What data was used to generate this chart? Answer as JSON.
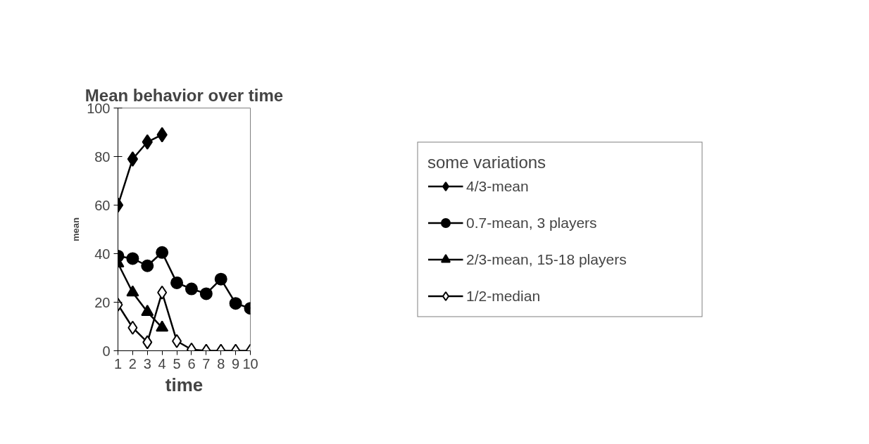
{
  "chart_data": {
    "type": "line",
    "title": "Mean behavior over time",
    "xlabel": "time",
    "ylabel": "mean",
    "legend_title": "some variations",
    "x": [
      1,
      2,
      3,
      4,
      5,
      6,
      7,
      8,
      9,
      10
    ],
    "xlim": [
      1,
      10
    ],
    "xticks": [
      1,
      2,
      3,
      4,
      5,
      6,
      7,
      8,
      9,
      10
    ],
    "ylim": [
      0,
      100
    ],
    "yticks": [
      0,
      20,
      40,
      60,
      80,
      100
    ],
    "grid": false,
    "legend": "right",
    "line_style": "solid",
    "series": [
      {
        "name": "4/3-mean",
        "color": "#000000",
        "marker": "diamond",
        "values": [
          60,
          79,
          86,
          89,
          null,
          null,
          null,
          null,
          null,
          null
        ]
      },
      {
        "name": "0.7-mean, 3 players",
        "color": "#000000",
        "marker": "circle",
        "values": [
          39,
          38,
          35,
          40.5,
          28,
          25.5,
          23.5,
          29.5,
          19.5,
          17.5
        ]
      },
      {
        "name": "2/3-mean, 15-18 players",
        "color": "#000000",
        "marker": "triangle",
        "values": [
          36,
          24,
          16,
          9.5,
          null,
          null,
          null,
          null,
          null,
          null
        ]
      },
      {
        "name": "1/2-median",
        "color": "#000000",
        "marker": "diamond_open",
        "values": [
          19,
          9.5,
          3.5,
          24,
          4,
          0.5,
          0,
          0,
          0,
          0
        ]
      }
    ]
  }
}
